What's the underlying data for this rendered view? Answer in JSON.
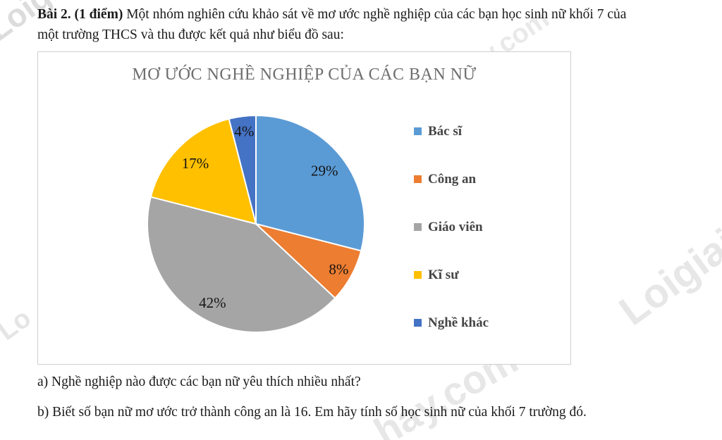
{
  "problem": {
    "heading_bold": "Bài 2. (1 điểm)",
    "intro_line1": " Một nhóm nghiên cứu khảo sát về mơ ước nghề nghiệp của các bạn học sinh nữ khối 7 của",
    "intro_line2": "một trường THCS và thu được kết quả như biểu đồ sau:",
    "question_a": "a) Nghề nghiệp nào được các bạn nữ yêu thích nhiều nhất?",
    "question_b": "b) Biết số bạn nữ mơ ước trở thành công an là 16. Em hãy tính số học sinh nữ của khối 7 trường đó."
  },
  "chart_data": {
    "type": "pie",
    "title": "MƠ ƯỚC NGHỀ NGHIỆP CỦA CÁC BẠN NỮ",
    "categories": [
      "Bác sĩ",
      "Công an",
      "Giáo viên",
      "Kĩ sư",
      "Nghề khác"
    ],
    "values": [
      29,
      8,
      42,
      17,
      4
    ],
    "unit": "%",
    "data_labels": [
      "29%",
      "8%",
      "42%",
      "17%",
      "4%"
    ],
    "colors": [
      "#5B9BD5",
      "#ED7D31",
      "#A5A5A5",
      "#FFC000",
      "#4472C4"
    ],
    "start_angle_deg": 0,
    "direction": "clockwise",
    "legend_position": "right",
    "label_radius_factors": [
      0.8,
      0.87,
      0.83,
      0.79,
      0.86
    ],
    "slice_border_color": "#ffffff"
  },
  "watermarks": [
    "Loigia",
    "y.com",
    "Loigiai",
    "Lo",
    "hay.com"
  ]
}
